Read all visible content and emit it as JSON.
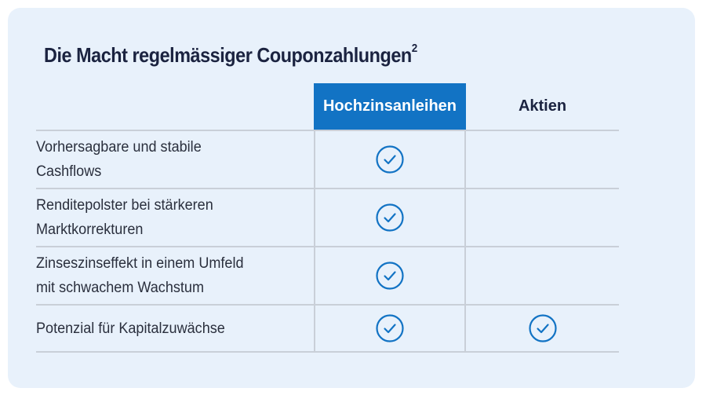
{
  "title": {
    "text": "Die Macht regelmässiger Couponzahlungen",
    "superscript": "2"
  },
  "table": {
    "columns": [
      "Hochzinsanleihen",
      "Aktien"
    ],
    "rows": [
      {
        "line1": "Vorhersagbare und stabile",
        "line2": "Cashflows",
        "high_yield": true,
        "equities": false
      },
      {
        "line1": "Renditepolster bei stärkeren",
        "line2": "Marktkorrekturen",
        "high_yield": true,
        "equities": false
      },
      {
        "line1": "Zinseszinseffekt in einem Umfeld",
        "line2": "mit schwachem Wachstum",
        "high_yield": true,
        "equities": false
      },
      {
        "line1": "Potenzial für Kapitalzuwächse",
        "line2": "",
        "high_yield": true,
        "equities": true
      }
    ]
  },
  "icons": {
    "check": "check-circle-icon"
  },
  "colors": {
    "card_background": "#e8f1fb",
    "header_highlight": "#1273c4",
    "check_color": "#1273c4",
    "title_color": "#1b2340"
  }
}
